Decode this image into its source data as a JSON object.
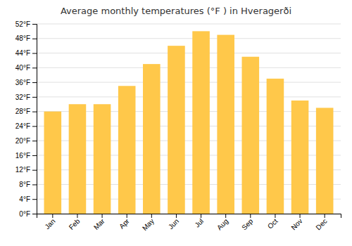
{
  "chart_data": {
    "type": "bar",
    "title": "Average monthly temperatures (°F ) in Hveragerði",
    "categories": [
      "Jan",
      "Feb",
      "Mar",
      "Apr",
      "May",
      "Jun",
      "Jul",
      "Aug",
      "Sep",
      "Oct",
      "Nov",
      "Dec"
    ],
    "values": [
      28,
      30,
      30,
      35,
      41,
      46,
      50,
      49,
      43,
      37,
      31,
      29
    ],
    "color": "#FFC84A",
    "ylim": [
      0,
      52
    ],
    "yticks": [
      {
        "value": 0,
        "label": "0°F"
      },
      {
        "value": 4,
        "label": "4°F"
      },
      {
        "value": 8,
        "label": "8°F"
      },
      {
        "value": 12,
        "label": "12°F"
      },
      {
        "value": 16,
        "label": "16°F"
      },
      {
        "value": 20,
        "label": "20°F"
      },
      {
        "value": 24,
        "label": "24°F"
      },
      {
        "value": 28,
        "label": "28°F"
      },
      {
        "value": 32,
        "label": "32°F"
      },
      {
        "value": 36,
        "label": "36°F"
      },
      {
        "value": 40,
        "label": "40°F"
      },
      {
        "value": 44,
        "label": "44°F"
      },
      {
        "value": 48,
        "label": "48°F"
      },
      {
        "value": 52,
        "label": "52°F"
      }
    ],
    "grid": true
  }
}
